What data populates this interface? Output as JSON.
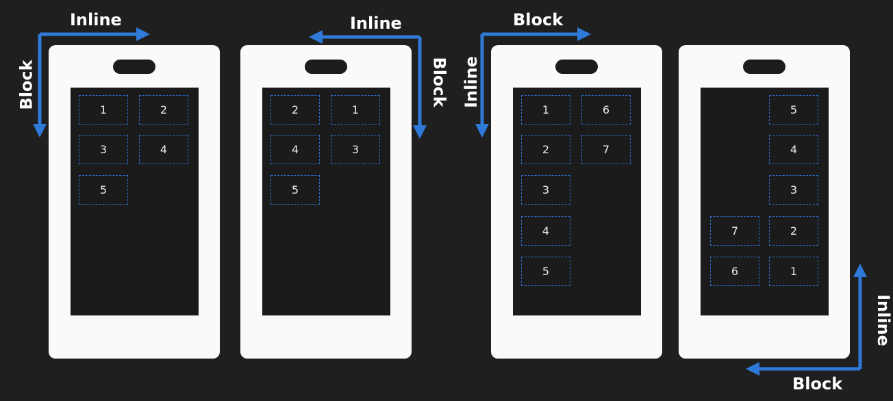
{
  "accent_color": "#2f7ad9",
  "phones": [
    {
      "id": "ltr-tb",
      "items": [
        "1",
        "2",
        "3",
        "4",
        "5"
      ]
    },
    {
      "id": "rtl-tb",
      "items": [
        "2",
        "1",
        "4",
        "3",
        "5"
      ]
    },
    {
      "id": "vlr",
      "items": [
        "1",
        "6",
        "2",
        "7",
        "3",
        "4",
        "5"
      ]
    },
    {
      "id": "vrl-bt",
      "items": [
        "5",
        "4",
        "3",
        "7",
        "2",
        "6",
        "1"
      ]
    }
  ],
  "labels": {
    "p1_inline": "Inline",
    "p1_block": "Block",
    "p2_inline": "Inline",
    "p2_block": "Block",
    "p3_block": "Block",
    "p3_inline": "Inline",
    "p4_inline": "Inline",
    "p4_block": "Block"
  }
}
